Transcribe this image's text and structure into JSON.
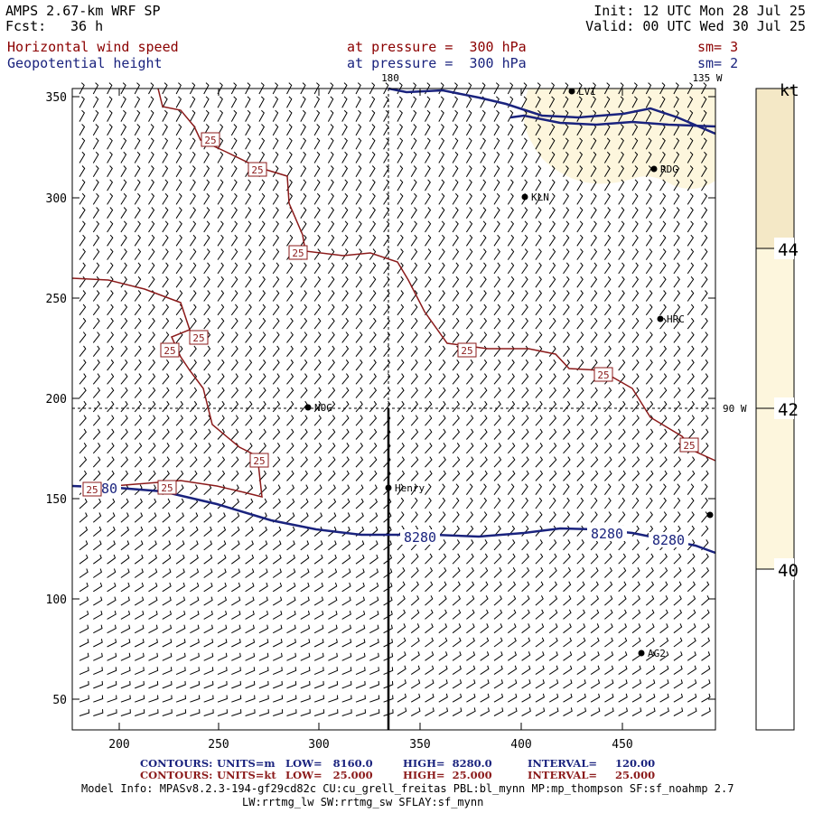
{
  "header": {
    "model": "AMPS 2.67-km WRF SP",
    "fcst_label": "Fcst:",
    "fcst_value": "36 h",
    "init": "Init: 12 UTC Mon 28 Jul 25",
    "valid": "Valid: 00 UTC Wed 30 Jul 25",
    "field1": "Horizontal wind speed",
    "field1_level": "at pressure =  300 hPa",
    "field1_sm": "sm= 3",
    "field2": "Geopotential height",
    "field2_level": "at pressure =  300 hPa",
    "field2_sm": "sm= 2"
  },
  "map": {
    "x_ticks": [
      "200",
      "250",
      "300",
      "350",
      "400",
      "450"
    ],
    "y_ticks": [
      "50",
      "100",
      "150",
      "200",
      "250",
      "300",
      "350"
    ],
    "meridian_labels": {
      "m180": "180",
      "m135w": "135 W",
      "m90w": "90 W"
    },
    "stations": [
      {
        "id": "LVI",
        "label": "LVI"
      },
      {
        "id": "RDG",
        "label": "RDG"
      },
      {
        "id": "KLN",
        "label": "KLN"
      },
      {
        "id": "HRC",
        "label": "HRC"
      },
      {
        "id": "NOG",
        "label": "NOG"
      },
      {
        "id": "Henry",
        "label": "Henry"
      },
      {
        "id": "AG2",
        "label": "AG2"
      },
      {
        "id": "E",
        "label": ""
      }
    ],
    "height_contour_label": "8280",
    "speed_contour_label": "25",
    "colors": {
      "height": "#1a237e",
      "speed": "#8b1a1a",
      "shade": "#fdf6dd"
    }
  },
  "colorbar": {
    "unit": "kt",
    "labels": [
      "40",
      "42",
      "44"
    ],
    "colors": {
      "low": "#ffffff",
      "mid": "#fdf6dd",
      "high": "#f4e8c6"
    }
  },
  "footer": {
    "contours1_label": "CONTOURS:",
    "contours1_units": "UNITS=m",
    "contours1_low": "LOW=   8160.0",
    "contours1_high": "HIGH=  8280.0",
    "contours1_interval": "INTERVAL=     120.00",
    "contours2_label": "CONTOURS:",
    "contours2_units": "UNITS=kt",
    "contours2_low": "LOW=   25.000",
    "contours2_high": "HIGH=  25.000",
    "contours2_interval": "INTERVAL=     25.000",
    "model_info1": "Model Info: MPASv8.2.3-194-gf29cd82c CU:cu_grell_freitas PBL:bl_mynn MP:mp_thompson SF:sf_noahmp 2.7",
    "model_info2": "LW:rrtmg_lw SW:rrtmg_sw SFLAY:sf_mynn"
  }
}
